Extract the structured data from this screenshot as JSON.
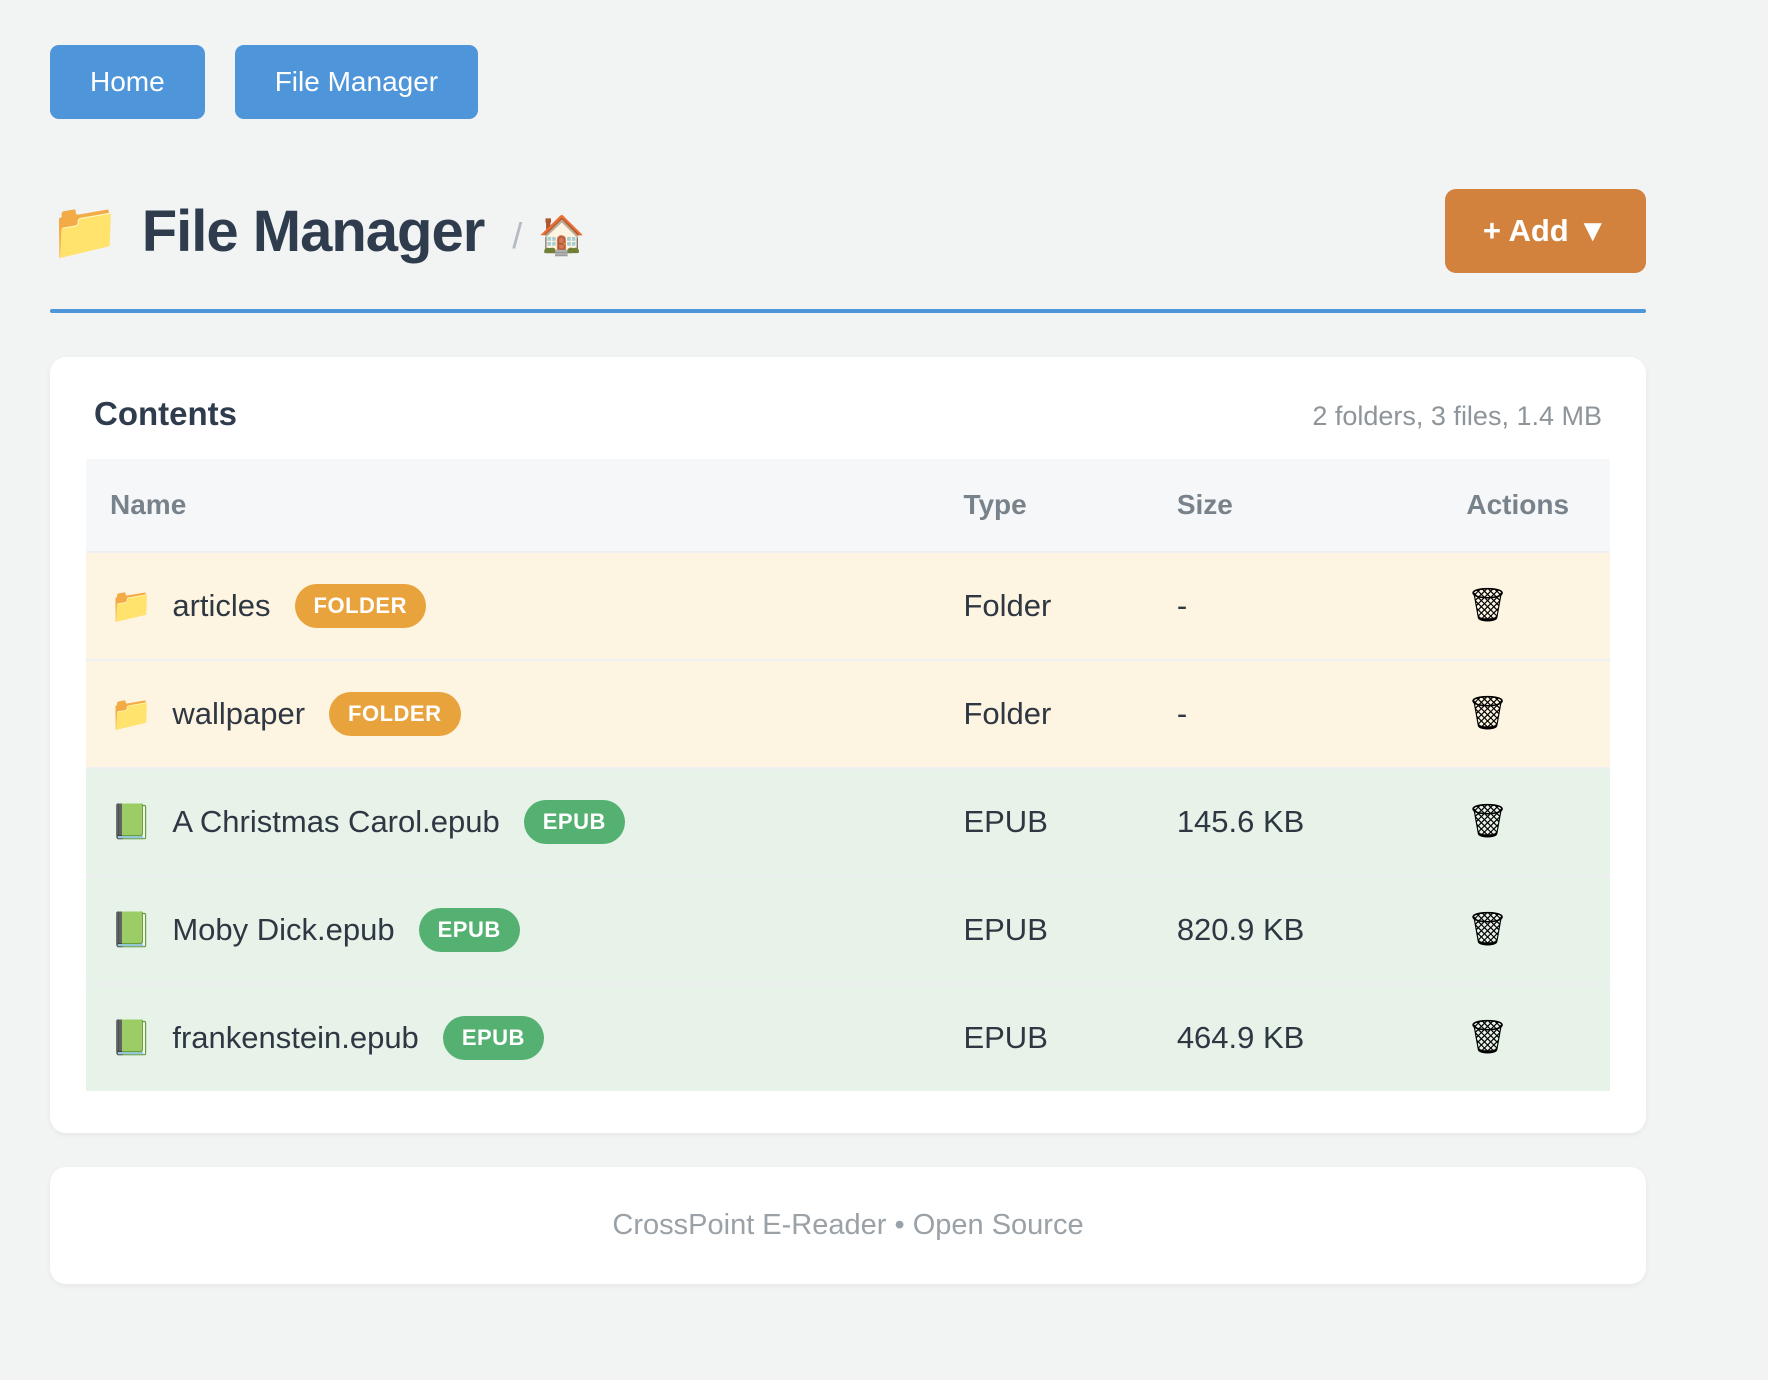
{
  "nav": {
    "buttons": [
      {
        "label": "Home"
      },
      {
        "label": "File Manager"
      }
    ]
  },
  "header": {
    "folder_icon": "📁",
    "title": "File Manager",
    "breadcrumb_separator": "/",
    "home_icon": "🏠",
    "add_button_label": "+ Add ▼"
  },
  "contents": {
    "title": "Contents",
    "summary": "2 folders, 3 files, 1.4 MB",
    "columns": [
      "Name",
      "Type",
      "Size",
      "Actions"
    ],
    "trash_icon": "🗑",
    "rows": [
      {
        "icon": "📁",
        "name": "articles",
        "badge": "FOLDER",
        "kind": "folder",
        "type": "Folder",
        "size": "-"
      },
      {
        "icon": "📁",
        "name": "wallpaper",
        "badge": "FOLDER",
        "kind": "folder",
        "type": "Folder",
        "size": "-"
      },
      {
        "icon": "📗",
        "name": "A Christmas Carol.epub",
        "badge": "EPUB",
        "kind": "epub",
        "type": "EPUB",
        "size": "145.6 KB"
      },
      {
        "icon": "📗",
        "name": "Moby Dick.epub",
        "badge": "EPUB",
        "kind": "epub",
        "type": "EPUB",
        "size": "820.9 KB"
      },
      {
        "icon": "📗",
        "name": "frankenstein.epub",
        "badge": "EPUB",
        "kind": "epub",
        "type": "EPUB",
        "size": "464.9 KB"
      }
    ]
  },
  "footer": {
    "text": "CrossPoint E-Reader • Open Source"
  },
  "colors": {
    "page-bg": "#f2f3f3",
    "accent-blue": "#4e95da",
    "accent-orange": "#d2823c",
    "thead-bg": "#f6f7f9",
    "row-folder-bg": "#fdf5e1",
    "row-epub-bg": "#e7f2e9",
    "badge-folder": "#e9a33c",
    "badge-epub": "#55b172"
  }
}
